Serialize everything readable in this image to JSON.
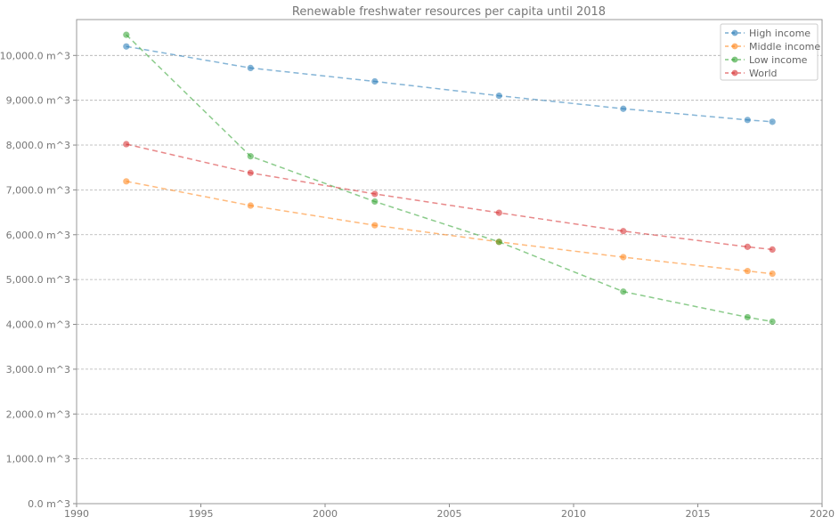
{
  "chart_data": {
    "type": "line",
    "title": "Renewable freshwater resources per capita until 2018",
    "xlabel": "",
    "ylabel": "",
    "xlim": [
      1990,
      2020
    ],
    "ylim": [
      0,
      10800
    ],
    "x_ticks": [
      1990,
      1995,
      2000,
      2005,
      2010,
      2015,
      2020
    ],
    "y_ticks": [
      0,
      1000,
      2000,
      3000,
      4000,
      5000,
      6000,
      7000,
      8000,
      9000,
      10000
    ],
    "y_tick_labels": [
      "0.0 m^3",
      "1,000.0 m^3",
      "2,000.0 m^3",
      "3,000.0 m^3",
      "4,000.0 m^3",
      "5,000.0 m^3",
      "6,000.0 m^3",
      "7,000.0 m^3",
      "8,000.0 m^3",
      "9,000.0 m^3",
      "10,000.0 m^3"
    ],
    "grid": "horizontal dashed",
    "legend_position": "top-right",
    "x": [
      1992,
      1997,
      2002,
      2007,
      2012,
      2017,
      2018
    ],
    "series": [
      {
        "name": "High income",
        "color": "#1f77b4",
        "values": [
          10200,
          9720,
          9420,
          9100,
          8810,
          8560,
          8520
        ]
      },
      {
        "name": "Middle income",
        "color": "#ff7f0e",
        "values": [
          7190,
          6650,
          6210,
          5840,
          5500,
          5190,
          5130
        ]
      },
      {
        "name": "Low income",
        "color": "#2ca02c",
        "values": [
          10460,
          7750,
          6740,
          5840,
          4730,
          4160,
          4060
        ]
      },
      {
        "name": "World",
        "color": "#d62728",
        "values": [
          8020,
          7380,
          6910,
          6490,
          6080,
          5730,
          5670
        ]
      }
    ]
  }
}
